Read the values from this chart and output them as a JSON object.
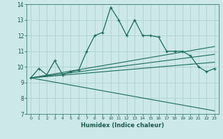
{
  "title": "",
  "xlabel": "Humidex (Indice chaleur)",
  "bg_color": "#cce8e8",
  "grid_color": "#aacccc",
  "line_color": "#1a6b5a",
  "xlim": [
    -0.5,
    23.5
  ],
  "ylim": [
    7,
    14
  ],
  "xticks": [
    0,
    1,
    2,
    3,
    4,
    5,
    6,
    7,
    8,
    9,
    10,
    11,
    12,
    13,
    14,
    15,
    16,
    17,
    18,
    19,
    20,
    21,
    22,
    23
  ],
  "yticks": [
    7,
    8,
    9,
    10,
    11,
    12,
    13,
    14
  ],
  "main_line_x": [
    0,
    1,
    2,
    3,
    4,
    5,
    6,
    7,
    8,
    9,
    10,
    11,
    12,
    13,
    14,
    15,
    16,
    17,
    18,
    19,
    20,
    21,
    22,
    23
  ],
  "main_line_y": [
    9.3,
    9.9,
    9.5,
    10.4,
    9.5,
    9.7,
    9.8,
    11.0,
    12.0,
    12.2,
    13.8,
    13.0,
    12.0,
    13.0,
    12.0,
    12.0,
    11.9,
    11.0,
    11.0,
    11.0,
    10.7,
    10.0,
    9.7,
    9.9
  ],
  "upper_line_x": [
    0,
    23
  ],
  "upper_line_y": [
    9.3,
    11.3
  ],
  "mid_upper_line_x": [
    0,
    23
  ],
  "mid_upper_line_y": [
    9.3,
    10.8
  ],
  "mid_lower_line_x": [
    0,
    23
  ],
  "mid_lower_line_y": [
    9.3,
    10.3
  ],
  "lower_line_x": [
    0,
    23
  ],
  "lower_line_y": [
    9.3,
    7.2
  ]
}
